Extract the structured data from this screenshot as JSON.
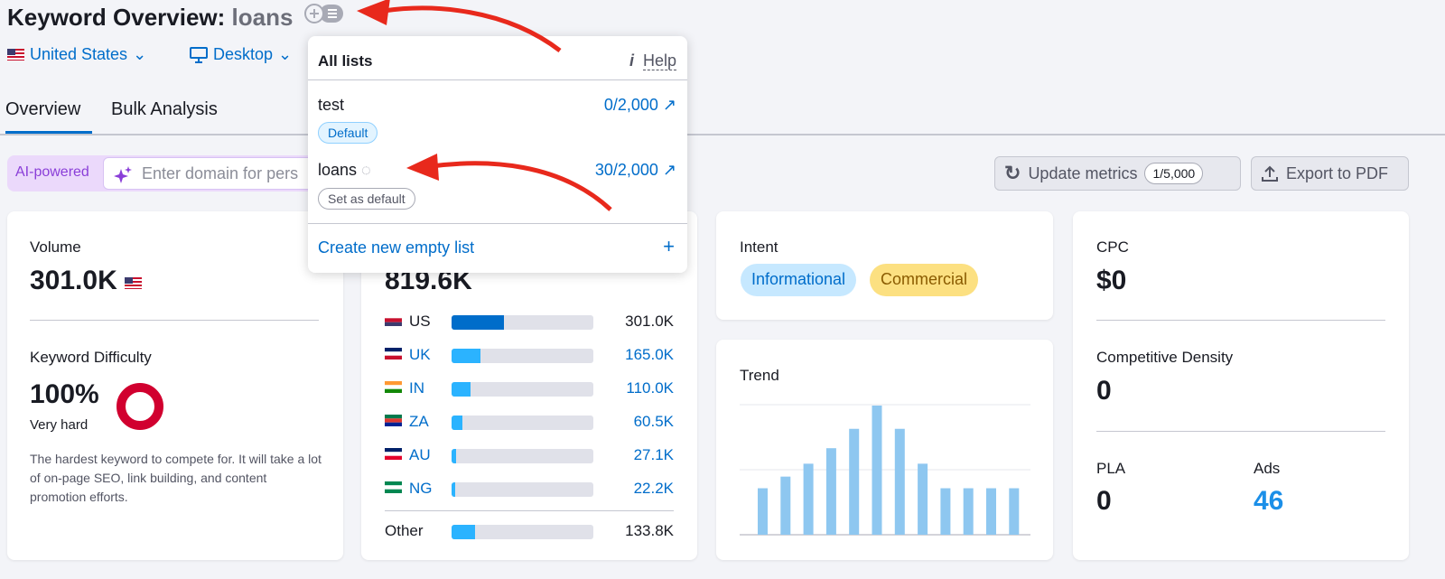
{
  "header": {
    "title": "Keyword Overview:",
    "keyword": "loans",
    "add_to_list_icon": "add-to-list-icon"
  },
  "filters": {
    "country": "United States",
    "device": "Desktop"
  },
  "tabs": [
    {
      "label": "Overview",
      "active": true
    },
    {
      "label": "Bulk Analysis",
      "active": false
    }
  ],
  "ai": {
    "label": "AI-powered",
    "placeholder": "Enter domain for pers"
  },
  "actions": {
    "update": "Update metrics",
    "update_count": "1/5,000",
    "export": "Export to PDF"
  },
  "popup": {
    "title": "All lists",
    "help": "Help",
    "lists": [
      {
        "name": "test",
        "count": "0/2,000",
        "badge": "Default"
      },
      {
        "name": "loans",
        "count": "30/2,000",
        "badge": "Set as default"
      }
    ],
    "create": "Create new empty list",
    "create_icon": "+"
  },
  "volume": {
    "label": "Volume",
    "value": "301.0K"
  },
  "kd": {
    "label": "Keyword Difficulty",
    "value": "100%",
    "level": "Very hard",
    "percent": 100,
    "color": "#d1002f",
    "desc": "The hardest keyword to compete for. It will take a lot of on-page SEO, link building, and content promotion efforts."
  },
  "global": {
    "value": "819.6K",
    "countries": [
      {
        "code": "US",
        "value": "301.0K",
        "share": 36.7,
        "color": "#006dca",
        "link": false
      },
      {
        "code": "UK",
        "value": "165.0K",
        "share": 20.1,
        "color": "#2bb3ff",
        "link": true
      },
      {
        "code": "IN",
        "value": "110.0K",
        "share": 13.4,
        "color": "#2bb3ff",
        "link": true
      },
      {
        "code": "ZA",
        "value": "60.5K",
        "share": 7.4,
        "color": "#2bb3ff",
        "link": true
      },
      {
        "code": "AU",
        "value": "27.1K",
        "share": 3.3,
        "color": "#2bb3ff",
        "link": true
      },
      {
        "code": "NG",
        "value": "22.2K",
        "share": 2.7,
        "color": "#2bb3ff",
        "link": true
      }
    ],
    "other": {
      "label": "Other",
      "value": "133.8K",
      "share": 16.3
    }
  },
  "intent": {
    "label": "Intent",
    "badges": [
      {
        "text": "Informational",
        "bg": "#c6e8ff",
        "color": "#006dca"
      },
      {
        "text": "Commercial",
        "bg": "#fce081",
        "color": "#8a5b00"
      }
    ]
  },
  "trend": {
    "label": "Trend",
    "values": [
      0.36,
      0.45,
      0.55,
      0.67,
      0.82,
      1,
      0.82,
      0.55,
      0.36,
      0.36,
      0.36,
      0.36
    ],
    "color": "#8ec7f0"
  },
  "cpc": {
    "label": "CPC",
    "value": "$0"
  },
  "density": {
    "label": "Competitive Density",
    "value": "0"
  },
  "pla": {
    "label": "PLA",
    "value": "0"
  },
  "ads": {
    "label": "Ads",
    "value": "46",
    "color": "#1b8fe8"
  }
}
